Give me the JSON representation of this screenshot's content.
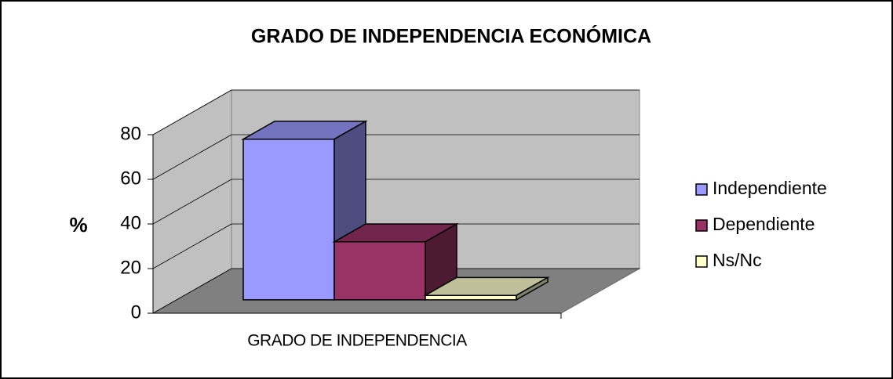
{
  "chart_data": {
    "type": "bar3d",
    "title": "GRADO DE INDEPENDENCIA ECONÓMICA",
    "y_label": "%",
    "categories": [
      "GRADO DE INDEPENDENCIA"
    ],
    "series": [
      {
        "name": "Independiente",
        "color": "#9999ff",
        "values": [
          72
        ]
      },
      {
        "name": "Dependiente",
        "color": "#993366",
        "values": [
          26
        ]
      },
      {
        "name": "Ns/Nc",
        "color": "#ffffcc",
        "values": [
          2
        ]
      }
    ],
    "ylim": [
      0,
      80
    ],
    "yticks": [
      0,
      20,
      40,
      60,
      80
    ],
    "grid": true,
    "legend": "right"
  }
}
